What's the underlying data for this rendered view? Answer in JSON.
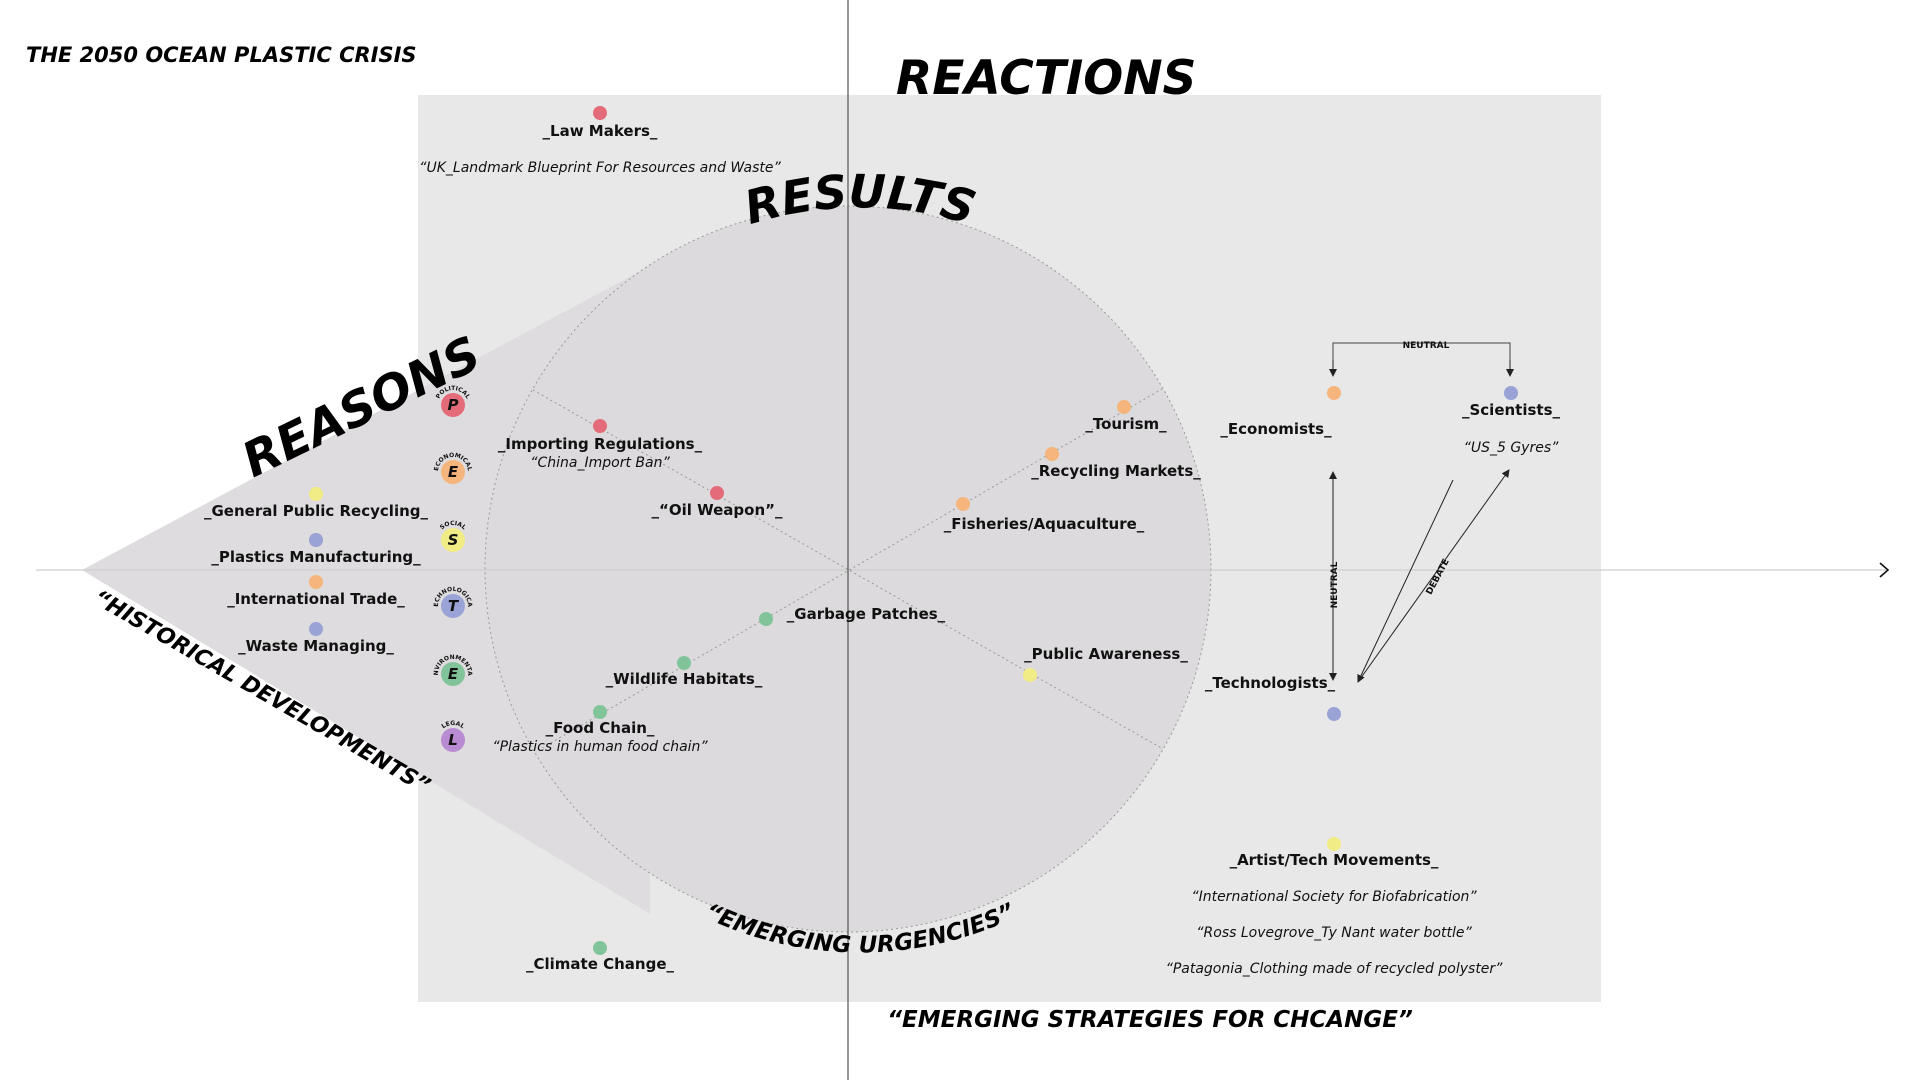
{
  "title": "THE 2050 OCEAN PLASTIC CRISIS",
  "headings": {
    "reactions": "REACTIONS",
    "results": "RESULTS",
    "reasons": "REASONS",
    "historical": "“HISTORICAL DEVELOPMENTS”",
    "emerging_urgencies": "“EMERGING URGENCIES”",
    "emerging_strategies": "“EMERGING STRATEGIES FOR CHCANGE”"
  },
  "colors": {
    "red": "#e46c7a",
    "orange": "#f5b57c",
    "yellow": "#f2ec86",
    "blue": "#9aa3d6",
    "green": "#82c49a",
    "purple": "#b98bd2",
    "panel": "#e8e8e8",
    "circle": "#dcdadc"
  },
  "pestel": [
    {
      "letter": "P",
      "word": "POLITICAL",
      "color": "red"
    },
    {
      "letter": "E",
      "word": "ECONOMICAL",
      "color": "orange"
    },
    {
      "letter": "S",
      "word": "SOCIAL",
      "color": "yellow"
    },
    {
      "letter": "T",
      "word": "TECHNOLOGICAL",
      "color": "blue"
    },
    {
      "letter": "E",
      "word": "ENVIRONMENTAL",
      "color": "green"
    },
    {
      "letter": "L",
      "word": "LEGAL",
      "color": "purple"
    }
  ],
  "left_items": [
    {
      "label": "_General Public Recycling_",
      "color": "yellow"
    },
    {
      "label": "_Plastics Manufacturing_",
      "color": "blue"
    },
    {
      "label": "_International Trade_",
      "color": "orange"
    },
    {
      "label": "_Waste Managing_",
      "color": "blue"
    }
  ],
  "nodes": {
    "law_makers": {
      "label": "_Law Makers_",
      "quote": "“UK_Landmark Blueprint For Resources and Waste”",
      "color": "red"
    },
    "importing": {
      "label": "_Importing Regulations_",
      "quote": "“China_Import Ban”",
      "color": "red"
    },
    "oil_weapon": {
      "label": "_“Oil Weapon”_",
      "color": "red"
    },
    "tourism": {
      "label": "_Tourism_",
      "color": "orange"
    },
    "recycling_markets": {
      "label": "_Recycling Markets_",
      "color": "orange"
    },
    "fisheries": {
      "label": "_Fisheries/Aquaculture_",
      "color": "orange"
    },
    "garbage": {
      "label": "_Garbage Patches_",
      "color": "green"
    },
    "wildlife": {
      "label": "_Wildlife Habitats_",
      "color": "green"
    },
    "food_chain": {
      "label": "_Food Chain_",
      "quote": "“Plastics in human food chain”",
      "color": "green"
    },
    "public_awareness": {
      "label": "_Public Awareness_",
      "color": "yellow"
    },
    "climate": {
      "label": "_Climate Change_",
      "color": "green"
    },
    "economists": {
      "label": "_Economists_",
      "color": "orange"
    },
    "scientists": {
      "label": "_Scientists_",
      "quote": "“US_5 Gyres”",
      "color": "blue"
    },
    "technologists": {
      "label": "_Technologists_",
      "color": "blue"
    },
    "artist": {
      "label": "_Artist/Tech Movements_",
      "quotes": [
        "“International Society for Biofabrication”",
        "“Ross Lovegrove_Ty Nant water bottle”",
        "“Patagonia_Clothing made of recycled polyster”"
      ],
      "color": "yellow"
    }
  },
  "relations": {
    "neutral_top": "NEUTRAL",
    "neutral_vertical": "NEUTRAL",
    "debate": "DEBATE"
  }
}
